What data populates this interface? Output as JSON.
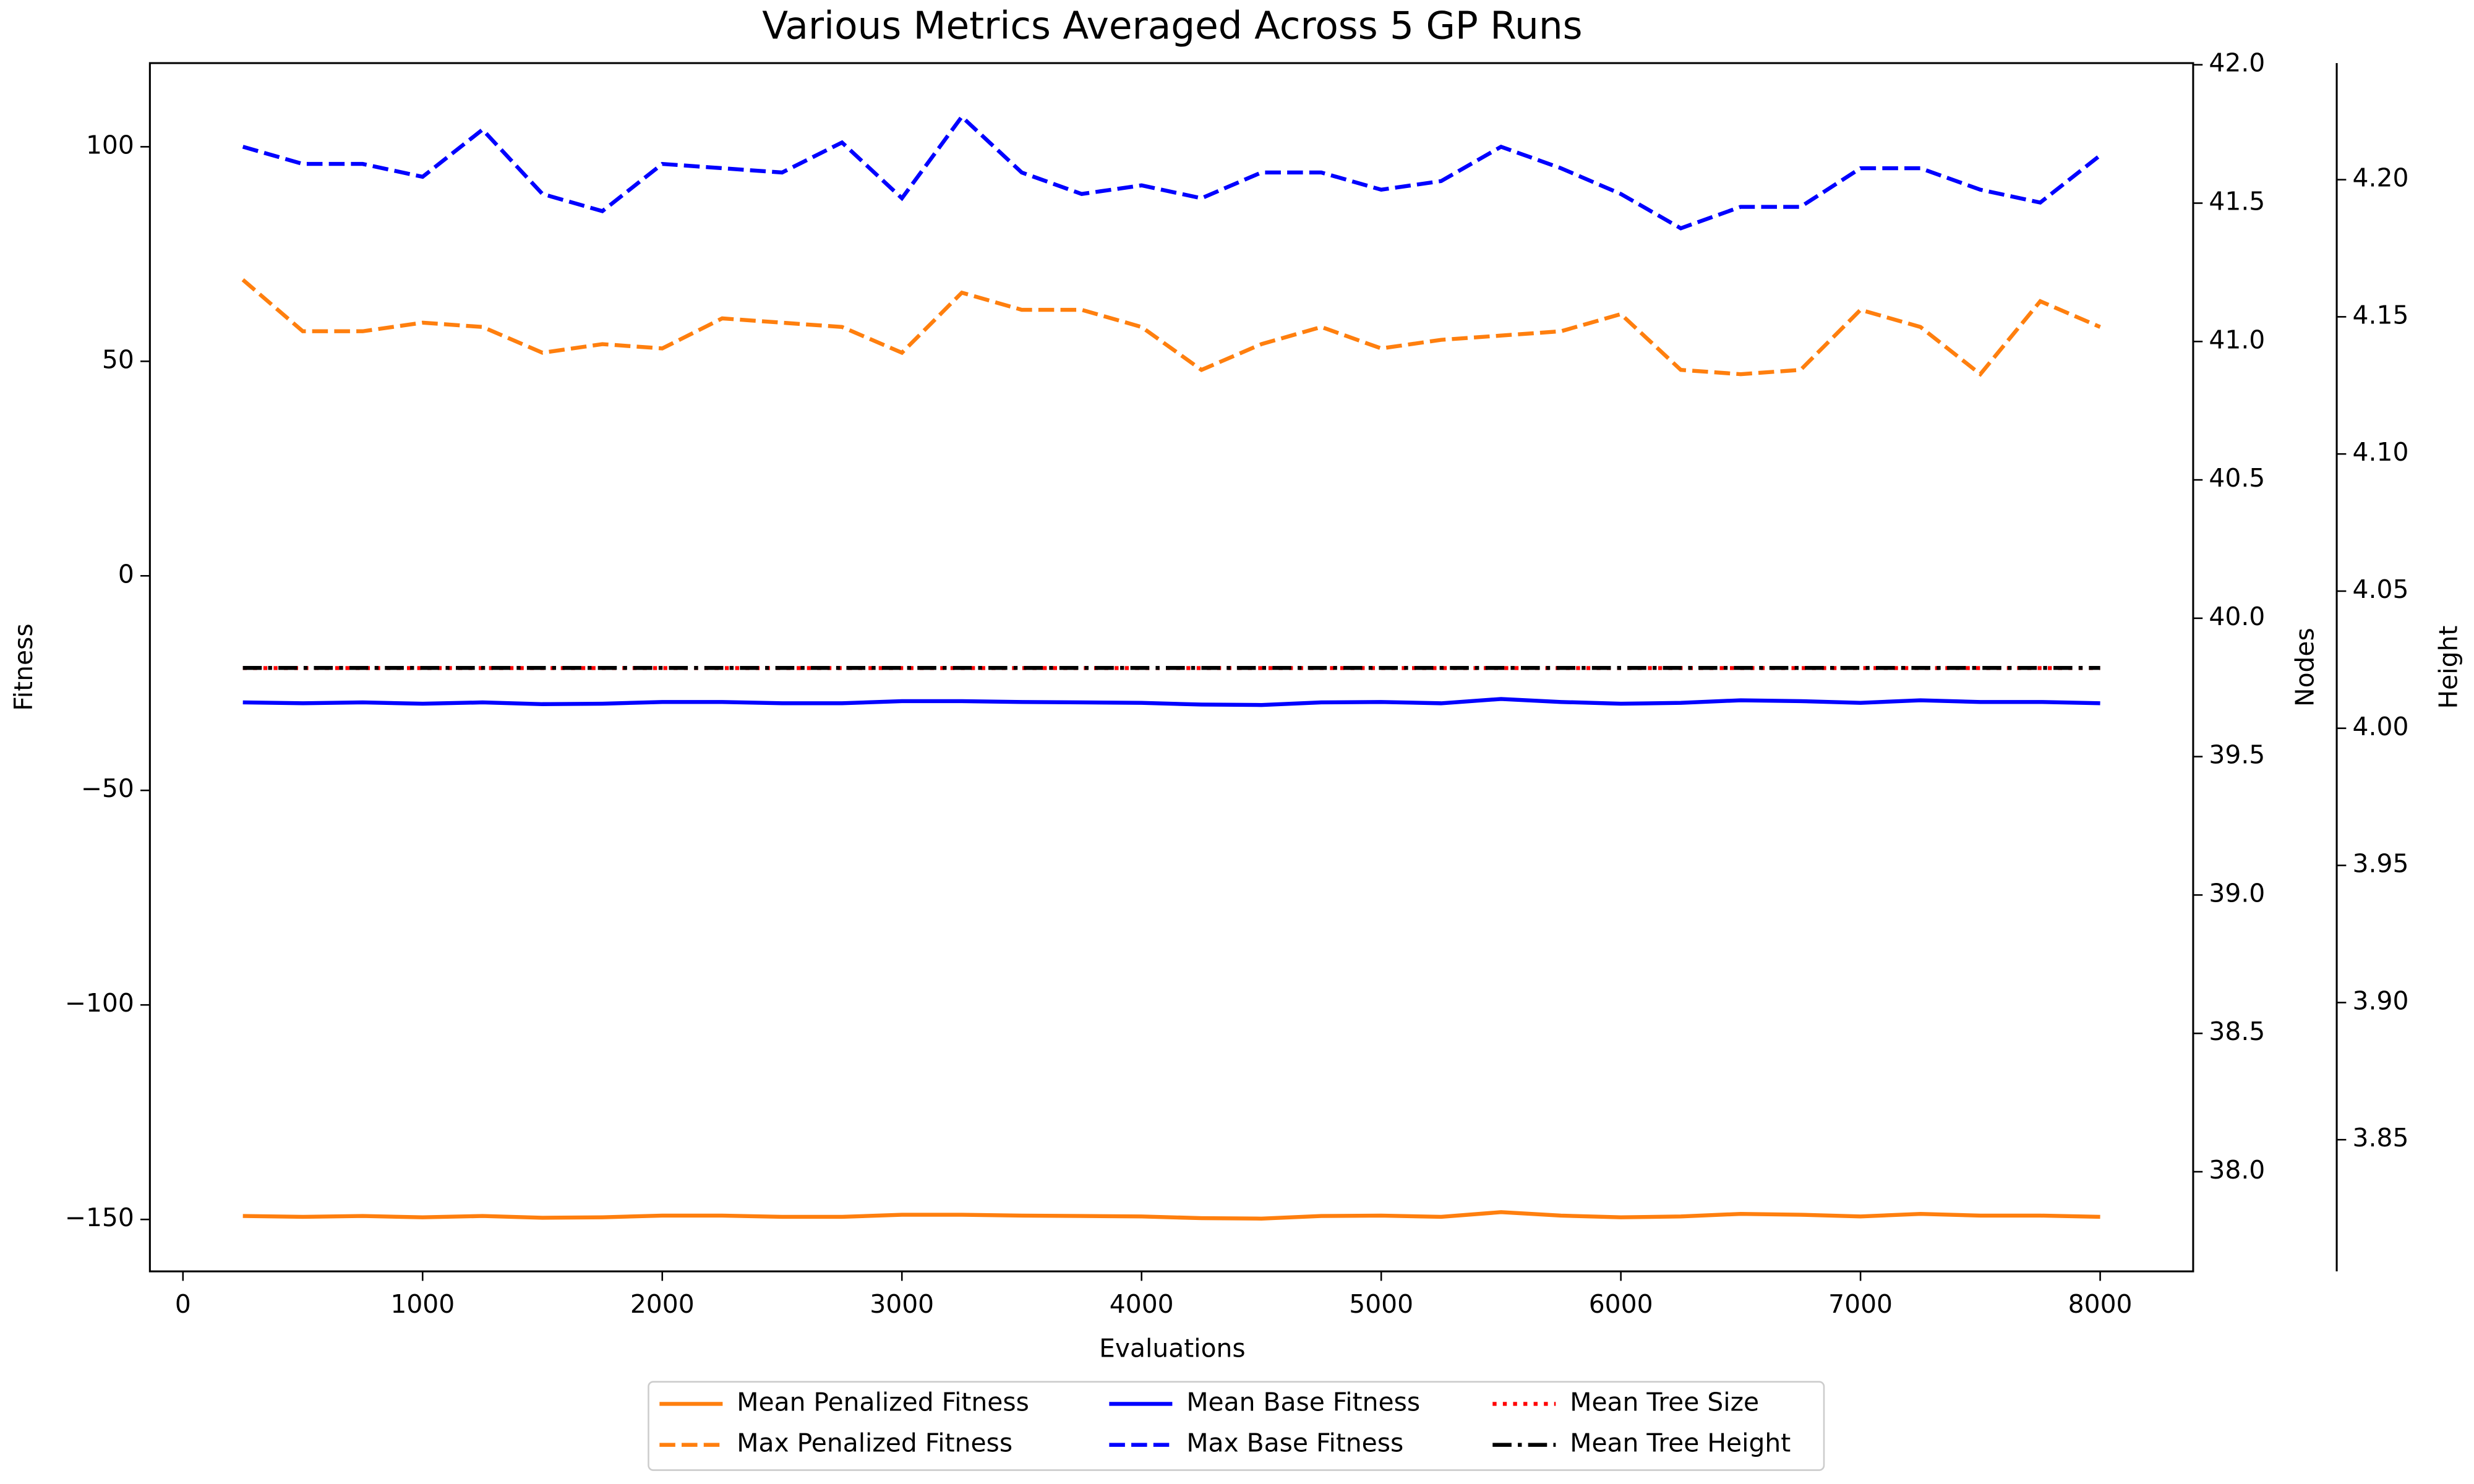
{
  "chart_data": {
    "type": "line",
    "title": "Various Metrics Averaged Across 5 GP Runs",
    "xlabel": "Evaluations",
    "ylabel": "Fitness",
    "y2label": "Nodes",
    "y3label": "Height",
    "x": [
      250,
      500,
      750,
      1000,
      1250,
      1500,
      1750,
      2000,
      2250,
      2500,
      2750,
      3000,
      3250,
      3500,
      3750,
      4000,
      4250,
      4500,
      4750,
      5000,
      5250,
      5500,
      5750,
      6000,
      6250,
      6500,
      6750,
      7000,
      7250,
      7500,
      7750,
      8000
    ],
    "xlim": [
      -138,
      8388
    ],
    "xticks": [
      0,
      1000,
      2000,
      3000,
      4000,
      5000,
      6000,
      7000,
      8000
    ],
    "ylim": [
      -162.1,
      119.5
    ],
    "yticks": [
      {
        "value": -150,
        "label": "−150"
      },
      {
        "value": -100,
        "label": "−100"
      },
      {
        "value": -50,
        "label": "−50"
      },
      0,
      50,
      100
    ],
    "y2lim": [
      37.64,
      42.006
    ],
    "y2ticks": [
      {
        "value": 38,
        "label": "38.0"
      },
      38.5,
      {
        "value": 39,
        "label": "39.0"
      },
      39.5,
      {
        "value": 40,
        "label": "40.0"
      },
      40.5,
      {
        "value": 41,
        "label": "41.0"
      },
      41.5,
      {
        "value": 42,
        "label": "42.0"
      }
    ],
    "y3lim": [
      3.802,
      4.2425
    ],
    "y3ticks": [
      3.85,
      {
        "value": 3.9,
        "label": "3.90"
      },
      3.95,
      {
        "value": 4,
        "label": "4.00"
      },
      4.05,
      {
        "value": 4.1,
        "label": "4.10"
      },
      4.15,
      {
        "value": 4.2,
        "label": "4.20"
      }
    ],
    "legend": "bottom",
    "series": [
      {
        "name": "Mean Penalized Fitness",
        "color": "#ff7f0e",
        "style": "solid",
        "axis": "y",
        "values": [
          -149.2,
          -149.4,
          -149.2,
          -149.5,
          -149.2,
          -149.6,
          -149.5,
          -149.1,
          -149.1,
          -149.4,
          -149.4,
          -148.9,
          -148.9,
          -149.1,
          -149.2,
          -149.3,
          -149.7,
          -149.8,
          -149.2,
          -149.1,
          -149.4,
          -148.3,
          -149.1,
          -149.5,
          -149.3,
          -148.7,
          -148.9,
          -149.3,
          -148.7,
          -149.1,
          -149.1,
          -149.4
        ]
      },
      {
        "name": "Max Penalized Fitness",
        "color": "#ff7f0e",
        "style": "dashed",
        "axis": "y",
        "values": [
          69,
          57,
          57,
          59,
          58,
          52,
          54,
          53,
          60,
          59,
          58,
          52,
          66,
          62,
          62,
          58,
          48,
          54,
          58,
          53,
          55,
          56,
          57,
          61,
          48,
          47,
          48,
          62,
          58,
          47,
          64,
          58
        ]
      },
      {
        "name": "Mean Base Fitness",
        "color": "#0000ff",
        "style": "solid",
        "axis": "y",
        "values": [
          -29.5,
          -29.7,
          -29.5,
          -29.8,
          -29.5,
          -29.9,
          -29.8,
          -29.4,
          -29.4,
          -29.7,
          -29.7,
          -29.2,
          -29.2,
          -29.4,
          -29.5,
          -29.6,
          -30,
          -30.1,
          -29.5,
          -29.4,
          -29.7,
          -28.7,
          -29.4,
          -29.8,
          -29.6,
          -29,
          -29.2,
          -29.6,
          -29,
          -29.4,
          -29.4,
          -29.7
        ]
      },
      {
        "name": "Max Base Fitness",
        "color": "#0000ff",
        "style": "dashed",
        "axis": "y",
        "values": [
          100,
          96,
          96,
          93,
          104,
          89,
          85,
          96,
          95,
          94,
          101,
          88,
          107,
          94,
          89,
          91,
          88,
          94,
          94,
          90,
          92,
          100,
          95,
          89,
          81,
          86,
          86,
          95,
          95,
          90,
          87,
          98
        ]
      },
      {
        "name": "Mean Tree Size",
        "color": "#ff0000",
        "style": "dotted",
        "axis": "y2",
        "values": [
          39.82,
          39.82,
          39.82,
          39.82,
          39.82,
          39.82,
          39.82,
          39.82,
          39.82,
          39.82,
          39.82,
          39.82,
          39.82,
          39.82,
          39.82,
          39.82,
          39.82,
          39.82,
          39.82,
          39.82,
          39.82,
          39.82,
          39.82,
          39.82,
          39.82,
          39.82,
          39.82,
          39.82,
          39.82,
          39.82,
          39.82,
          39.82
        ]
      },
      {
        "name": "Mean Tree Height",
        "color": "#000000",
        "style": "dashdot",
        "axis": "y3",
        "values": [
          4.022,
          4.022,
          4.022,
          4.022,
          4.022,
          4.022,
          4.022,
          4.022,
          4.022,
          4.022,
          4.022,
          4.022,
          4.022,
          4.022,
          4.022,
          4.022,
          4.022,
          4.022,
          4.022,
          4.022,
          4.022,
          4.022,
          4.022,
          4.022,
          4.022,
          4.022,
          4.022,
          4.022,
          4.022,
          4.022,
          4.022,
          4.022
        ]
      }
    ]
  }
}
